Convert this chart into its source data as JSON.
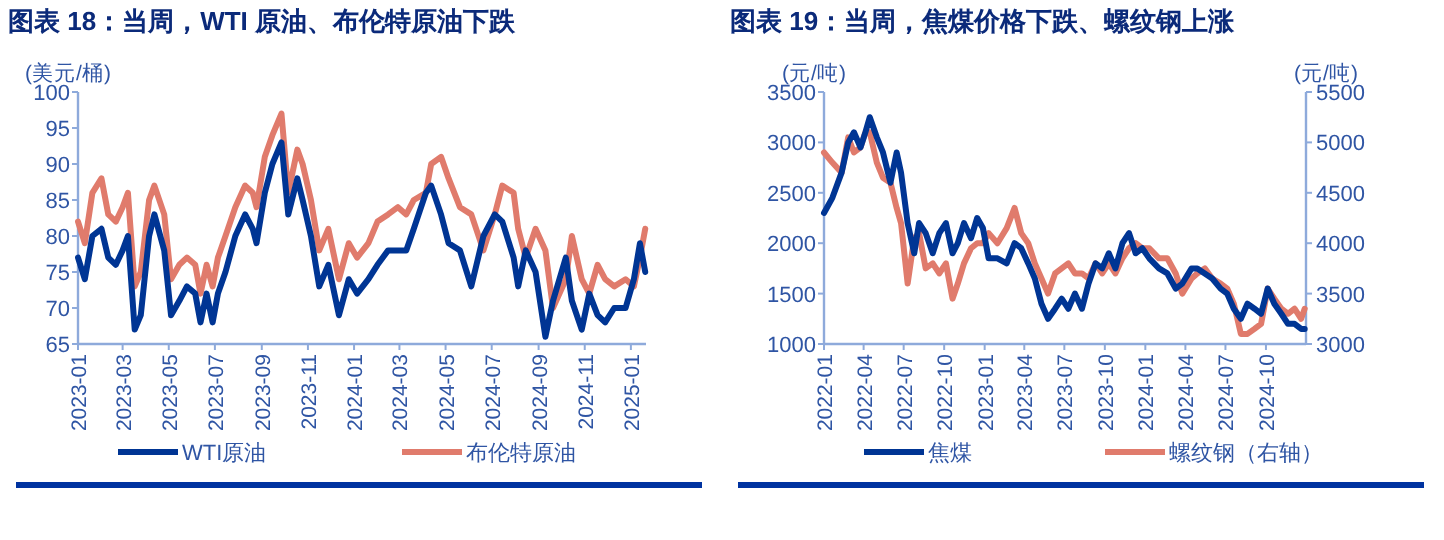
{
  "chart_data": [
    {
      "type": "line",
      "title": "图表 18：当周，WTI 原油、布伦特原油下跌",
      "ylabel": "(美元/桶)",
      "x": [
        "2023-01-01",
        "2023-01-10",
        "2023-01-20",
        "2023-02-01",
        "2023-02-10",
        "2023-02-20",
        "2023-03-01",
        "2023-03-08",
        "2023-03-17",
        "2023-03-25",
        "2023-04-05",
        "2023-04-12",
        "2023-04-25",
        "2023-05-04",
        "2023-05-15",
        "2023-05-25",
        "2023-06-05",
        "2023-06-12",
        "2023-06-20",
        "2023-06-28",
        "2023-07-05",
        "2023-07-15",
        "2023-07-28",
        "2023-08-10",
        "2023-08-20",
        "2023-08-25",
        "2023-09-05",
        "2023-09-15",
        "2023-09-27",
        "2023-10-06",
        "2023-10-18",
        "2023-10-25",
        "2023-11-05",
        "2023-11-16",
        "2023-11-28",
        "2023-12-12",
        "2023-12-25",
        "2024-01-05",
        "2024-01-20",
        "2024-02-01",
        "2024-02-15",
        "2024-02-28",
        "2024-03-10",
        "2024-03-20",
        "2024-04-05",
        "2024-04-12",
        "2024-04-25",
        "2024-05-05",
        "2024-05-20",
        "2024-06-04",
        "2024-06-20",
        "2024-07-05",
        "2024-07-15",
        "2024-07-30",
        "2024-08-05",
        "2024-08-15",
        "2024-08-28",
        "2024-09-10",
        "2024-09-20",
        "2024-10-07",
        "2024-10-15",
        "2024-10-28",
        "2024-11-07",
        "2024-11-18",
        "2024-11-28",
        "2024-12-10",
        "2024-12-25",
        "2025-01-05",
        "2025-01-13",
        "2025-01-20"
      ],
      "series": [
        {
          "name": "WTI原油",
          "color": "#003594",
          "values": [
            77,
            74,
            80,
            81,
            77,
            76,
            78,
            80,
            67,
            69,
            80,
            83,
            78,
            69,
            71,
            73,
            72,
            68,
            72,
            68,
            72,
            75,
            80,
            83,
            81,
            79,
            86,
            90,
            93,
            83,
            88,
            85,
            80,
            73,
            76,
            69,
            74,
            72,
            74,
            76,
            78,
            78,
            78,
            81,
            86,
            87,
            83,
            79,
            78,
            73,
            80,
            83,
            82,
            77,
            73,
            78,
            75,
            66,
            71,
            77,
            71,
            67,
            72,
            69,
            68,
            70,
            70,
            74,
            79,
            75
          ]
        },
        {
          "name": "布伦特原油",
          "color": "#e07b6c",
          "values": [
            82,
            79,
            86,
            88,
            83,
            82,
            84,
            86,
            73,
            75,
            85,
            87,
            83,
            74,
            76,
            77,
            76,
            72,
            76,
            73,
            77,
            80,
            84,
            87,
            86,
            84,
            91,
            94,
            97,
            86,
            92,
            90,
            85,
            78,
            81,
            74,
            79,
            77,
            79,
            82,
            83,
            84,
            83,
            85,
            86,
            90,
            91,
            88,
            84,
            83,
            78,
            83,
            87,
            86,
            81,
            77,
            81,
            78,
            70,
            74,
            80,
            74,
            72,
            76,
            74,
            73,
            74,
            73,
            77,
            81
          ]
        }
      ],
      "xlim": [
        "2023-01-01",
        "2025-01-21"
      ],
      "xticks": [
        {
          "value": "2023-01-01",
          "label": "2023-01"
        },
        {
          "value": "2023-03-01",
          "label": "2023-03"
        },
        {
          "value": "2023-05-01",
          "label": "2023-05"
        },
        {
          "value": "2023-07-01",
          "label": "2023-07"
        },
        {
          "value": "2023-09-01",
          "label": "2023-09"
        },
        {
          "value": "2023-11-01",
          "label": "2023-11"
        },
        {
          "value": "2024-01-01",
          "label": "2024-01"
        },
        {
          "value": "2024-03-01",
          "label": "2024-03"
        },
        {
          "value": "2024-05-01",
          "label": "2024-05"
        },
        {
          "value": "2024-07-01",
          "label": "2024-07"
        },
        {
          "value": "2024-09-01",
          "label": "2024-09"
        },
        {
          "value": "2024-11-01",
          "label": "2024-11"
        },
        {
          "value": "2025-01-01",
          "label": "2025-01"
        }
      ],
      "ylim": [
        65,
        100
      ],
      "yticks": [
        65,
        70,
        75,
        80,
        85,
        90,
        95,
        100
      ],
      "grid": false,
      "legend": "bottom",
      "marker": "none",
      "line_style": "solid"
    },
    {
      "type": "line",
      "title": "图表 19：当周，焦煤价格下跌、螺纹钢上涨",
      "ylabel": "(元/吨)",
      "y2label": "(元/吨)",
      "x": [
        "2022-01-01",
        "2022-01-20",
        "2022-02-10",
        "2022-02-25",
        "2022-03-10",
        "2022-03-25",
        "2022-04-05",
        "2022-04-15",
        "2022-05-01",
        "2022-05-15",
        "2022-06-01",
        "2022-06-15",
        "2022-06-25",
        "2022-07-10",
        "2022-07-25",
        "2022-08-05",
        "2022-08-20",
        "2022-09-05",
        "2022-09-20",
        "2022-10-05",
        "2022-10-20",
        "2022-11-01",
        "2022-11-15",
        "2022-12-01",
        "2022-12-15",
        "2022-12-28",
        "2023-01-10",
        "2023-01-30",
        "2023-02-20",
        "2023-03-10",
        "2023-03-25",
        "2023-04-10",
        "2023-04-25",
        "2023-05-10",
        "2023-05-25",
        "2023-06-10",
        "2023-06-25",
        "2023-07-10",
        "2023-07-25",
        "2023-08-10",
        "2023-08-25",
        "2023-09-10",
        "2023-09-25",
        "2023-10-10",
        "2023-10-25",
        "2023-11-10",
        "2023-11-25",
        "2023-12-10",
        "2023-12-25",
        "2024-01-10",
        "2024-02-01",
        "2024-02-20",
        "2024-03-10",
        "2024-03-25",
        "2024-04-15",
        "2024-04-28",
        "2024-05-15",
        "2024-06-01",
        "2024-06-20",
        "2024-07-05",
        "2024-07-20",
        "2024-08-05",
        "2024-08-20",
        "2024-09-05",
        "2024-09-20",
        "2024-10-05",
        "2024-10-20",
        "2024-11-05",
        "2024-11-20",
        "2024-12-05",
        "2024-12-20",
        "2024-12-28"
      ],
      "series": [
        {
          "name": "焦煤",
          "color": "#003594",
          "values": [
            2300,
            2450,
            2700,
            3000,
            3100,
            2950,
            3100,
            3250,
            3050,
            2900,
            2600,
            2900,
            2700,
            2200,
            1900,
            2200,
            2100,
            1900,
            2100,
            2200,
            1900,
            2000,
            2200,
            2050,
            2250,
            2150,
            1850,
            1850,
            1800,
            2000,
            1950,
            1800,
            1650,
            1400,
            1250,
            1350,
            1450,
            1350,
            1500,
            1350,
            1600,
            1800,
            1750,
            1900,
            1750,
            2000,
            2100,
            1900,
            1950,
            1850,
            1750,
            1700,
            1550,
            1600,
            1750,
            1750,
            1700,
            1650,
            1550,
            1500,
            1350,
            1250,
            1400,
            1350,
            1300,
            1550,
            1400,
            1300,
            1200,
            1200,
            1150,
            1150
          ]
        },
        {
          "name": "螺纹钢（右轴）",
          "color": "#e07b6c",
          "axis": "y2",
          "values": [
            4900,
            4800,
            4700,
            5050,
            4900,
            4950,
            5100,
            5100,
            4800,
            4650,
            4600,
            4350,
            4200,
            3600,
            4050,
            4100,
            3750,
            3800,
            3700,
            3800,
            3450,
            3600,
            3800,
            3950,
            4000,
            4000,
            4100,
            4000,
            4150,
            4350,
            4100,
            4000,
            3800,
            3650,
            3500,
            3700,
            3750,
            3800,
            3700,
            3700,
            3650,
            3800,
            3700,
            3800,
            3700,
            3850,
            3950,
            4000,
            3950,
            3950,
            3850,
            3850,
            3700,
            3500,
            3650,
            3700,
            3750,
            3650,
            3600,
            3550,
            3400,
            3100,
            3100,
            3150,
            3200,
            3550,
            3450,
            3350,
            3300,
            3350,
            3250,
            3350
          ]
        }
      ],
      "xlim": [
        "2022-01-01",
        "2024-12-31"
      ],
      "xticks": [
        {
          "value": "2022-01-01",
          "label": "2022-01"
        },
        {
          "value": "2022-04-01",
          "label": "2022-04"
        },
        {
          "value": "2022-07-01",
          "label": "2022-07"
        },
        {
          "value": "2022-10-01",
          "label": "2022-10"
        },
        {
          "value": "2023-01-01",
          "label": "2023-01"
        },
        {
          "value": "2023-04-01",
          "label": "2023-04"
        },
        {
          "value": "2023-07-01",
          "label": "2023-07"
        },
        {
          "value": "2023-10-01",
          "label": "2023-10"
        },
        {
          "value": "2024-01-01",
          "label": "2024-01"
        },
        {
          "value": "2024-04-01",
          "label": "2024-04"
        },
        {
          "value": "2024-07-01",
          "label": "2024-07"
        },
        {
          "value": "2024-10-01",
          "label": "2024-10"
        }
      ],
      "ylim": [
        1000,
        3500
      ],
      "yticks": [
        1000,
        1500,
        2000,
        2500,
        3000,
        3500
      ],
      "y2lim": [
        3000,
        5500
      ],
      "y2ticks": [
        3000,
        3500,
        4000,
        4500,
        5000,
        5500
      ],
      "grid": false,
      "legend": "bottom",
      "marker": "none",
      "line_style": "solid"
    }
  ]
}
